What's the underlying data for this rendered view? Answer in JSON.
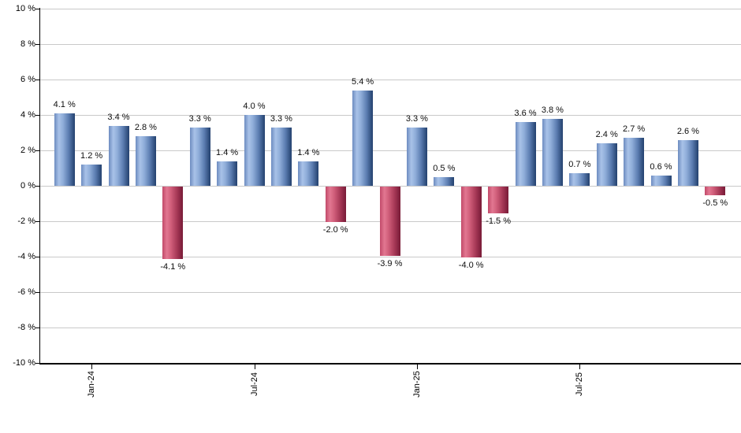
{
  "chart_data": {
    "type": "bar",
    "title": "",
    "xlabel": "",
    "ylabel": "",
    "values": [
      4.1,
      1.2,
      3.4,
      2.8,
      -4.1,
      3.3,
      1.4,
      4.0,
      3.3,
      1.4,
      -2.0,
      5.4,
      -3.9,
      3.3,
      0.5,
      -4.0,
      -1.5,
      3.6,
      3.8,
      0.7,
      2.4,
      2.7,
      0.6,
      2.6,
      -0.5
    ],
    "value_label_suffix": " %",
    "y_ticks": [
      {
        "value": 10,
        "label": "10 %"
      },
      {
        "value": 8,
        "label": "8 %"
      },
      {
        "value": 6,
        "label": "6 %"
      },
      {
        "value": 4,
        "label": "4 %"
      },
      {
        "value": 2,
        "label": "2 %"
      },
      {
        "value": 0,
        "label": "0 %"
      },
      {
        "value": -2,
        "label": "-2 %"
      },
      {
        "value": -4,
        "label": "-4 %"
      },
      {
        "value": -6,
        "label": "-6 %"
      },
      {
        "value": -8,
        "label": "-8 %"
      },
      {
        "value": -10,
        "label": "-10 %"
      }
    ],
    "x_ticks": [
      {
        "label": "Jan-24",
        "bar_index": 1
      },
      {
        "label": "Jul-24",
        "bar_index": 7
      },
      {
        "label": "Jan-25",
        "bar_index": 13
      },
      {
        "label": "Jul-25",
        "bar_index": 19
      }
    ],
    "ylim": [
      -10,
      10
    ],
    "grid": true,
    "legend": false,
    "layout_hints": {
      "bar_orientation": "vertical",
      "x_tick_label_rotation_deg": -90,
      "positive_labels": "above bars",
      "negative_labels": "below bars"
    },
    "colors": {
      "positive_bar_light": "#a9c2e8",
      "positive_bar_dark": "#24416f",
      "negative_bar_light": "#e27791",
      "negative_bar_dark": "#7a1d38",
      "gridline": "#c9c9c9",
      "axis": "#000000",
      "label_text": "#0d0d0d",
      "background": "#ffffff"
    }
  }
}
